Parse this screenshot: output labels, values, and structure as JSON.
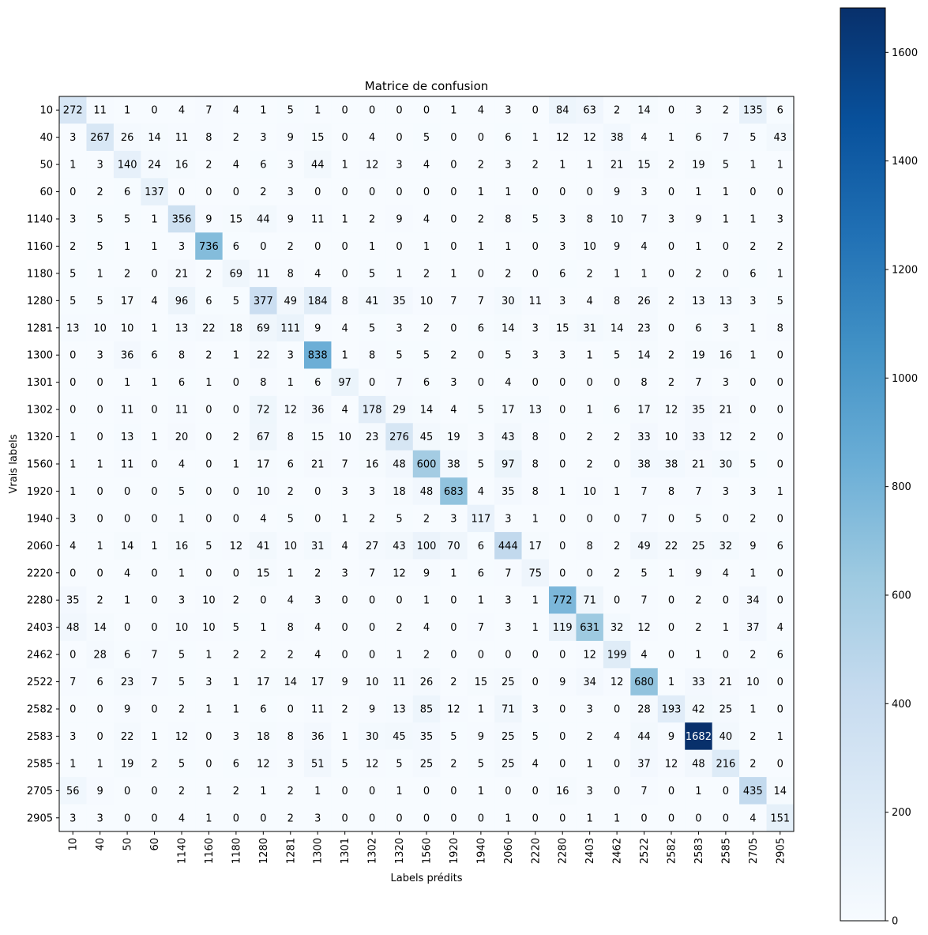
{
  "chart_data": {
    "type": "heatmap",
    "title": "Matrice de confusion",
    "xlabel": "Labels prédits",
    "ylabel": "Vrais labels",
    "row_labels": [
      "10",
      "40",
      "50",
      "60",
      "1140",
      "1160",
      "1180",
      "1280",
      "1281",
      "1300",
      "1301",
      "1302",
      "1320",
      "1560",
      "1920",
      "1940",
      "2060",
      "2220",
      "2280",
      "2403",
      "2462",
      "2522",
      "2582",
      "2583",
      "2585",
      "2705",
      "2905"
    ],
    "col_labels": [
      "10",
      "40",
      "50",
      "60",
      "1140",
      "1160",
      "1180",
      "1280",
      "1281",
      "1300",
      "1301",
      "1302",
      "1320",
      "1560",
      "1920",
      "1940",
      "2060",
      "2220",
      "2280",
      "2403",
      "2462",
      "2522",
      "2582",
      "2583",
      "2585",
      "2705",
      "2905"
    ],
    "matrix": [
      [
        272,
        11,
        1,
        0,
        4,
        7,
        4,
        1,
        5,
        1,
        0,
        0,
        0,
        0,
        1,
        4,
        3,
        0,
        84,
        63,
        2,
        14,
        0,
        3,
        2,
        135,
        6
      ],
      [
        3,
        267,
        26,
        14,
        11,
        8,
        2,
        3,
        9,
        15,
        0,
        4,
        0,
        5,
        0,
        0,
        6,
        1,
        12,
        12,
        38,
        4,
        1,
        6,
        7,
        5,
        43
      ],
      [
        1,
        3,
        140,
        24,
        16,
        2,
        4,
        6,
        3,
        44,
        1,
        12,
        3,
        4,
        0,
        2,
        3,
        2,
        1,
        1,
        21,
        15,
        2,
        19,
        5,
        1,
        1
      ],
      [
        0,
        2,
        6,
        137,
        0,
        0,
        0,
        2,
        3,
        0,
        0,
        0,
        0,
        0,
        0,
        1,
        1,
        0,
        0,
        0,
        9,
        3,
        0,
        1,
        1,
        0,
        0
      ],
      [
        3,
        5,
        5,
        1,
        356,
        9,
        15,
        44,
        9,
        11,
        1,
        2,
        9,
        4,
        0,
        2,
        8,
        5,
        3,
        8,
        10,
        7,
        3,
        9,
        1,
        1,
        3
      ],
      [
        2,
        5,
        1,
        1,
        3,
        736,
        6,
        0,
        2,
        0,
        0,
        1,
        0,
        1,
        0,
        1,
        1,
        0,
        3,
        10,
        9,
        4,
        0,
        1,
        0,
        2,
        2
      ],
      [
        5,
        1,
        2,
        0,
        21,
        2,
        69,
        11,
        8,
        4,
        0,
        5,
        1,
        2,
        1,
        0,
        2,
        0,
        6,
        2,
        1,
        1,
        0,
        2,
        0,
        6,
        1
      ],
      [
        5,
        5,
        17,
        4,
        96,
        6,
        5,
        377,
        49,
        184,
        8,
        41,
        35,
        10,
        7,
        7,
        30,
        11,
        3,
        4,
        8,
        26,
        2,
        13,
        13,
        3,
        5
      ],
      [
        13,
        10,
        10,
        1,
        13,
        22,
        18,
        69,
        111,
        9,
        4,
        5,
        3,
        2,
        0,
        6,
        14,
        3,
        15,
        31,
        14,
        23,
        0,
        6,
        3,
        1,
        8
      ],
      [
        0,
        3,
        36,
        6,
        8,
        2,
        1,
        22,
        3,
        838,
        1,
        8,
        5,
        5,
        2,
        0,
        5,
        3,
        3,
        1,
        5,
        14,
        2,
        19,
        16,
        1,
        0
      ],
      [
        0,
        0,
        1,
        1,
        6,
        1,
        0,
        8,
        1,
        6,
        97,
        0,
        7,
        6,
        3,
        0,
        4,
        0,
        0,
        0,
        0,
        8,
        2,
        7,
        3,
        0,
        0
      ],
      [
        0,
        0,
        11,
        0,
        11,
        0,
        0,
        72,
        12,
        36,
        4,
        178,
        29,
        14,
        4,
        5,
        17,
        13,
        0,
        1,
        6,
        17,
        12,
        35,
        21,
        0,
        0
      ],
      [
        1,
        0,
        13,
        1,
        20,
        0,
        2,
        67,
        8,
        15,
        10,
        23,
        276,
        45,
        19,
        3,
        43,
        8,
        0,
        2,
        2,
        33,
        10,
        33,
        12,
        2,
        0
      ],
      [
        1,
        1,
        11,
        0,
        4,
        0,
        1,
        17,
        6,
        21,
        7,
        16,
        48,
        600,
        38,
        5,
        97,
        8,
        0,
        2,
        0,
        38,
        38,
        21,
        30,
        5,
        0
      ],
      [
        1,
        0,
        0,
        0,
        5,
        0,
        0,
        10,
        2,
        0,
        3,
        3,
        18,
        48,
        683,
        4,
        35,
        8,
        1,
        10,
        1,
        7,
        8,
        7,
        3,
        3,
        1
      ],
      [
        3,
        0,
        0,
        0,
        1,
        0,
        0,
        4,
        5,
        0,
        1,
        2,
        5,
        2,
        3,
        117,
        3,
        1,
        0,
        0,
        0,
        7,
        0,
        5,
        0,
        2,
        0
      ],
      [
        4,
        1,
        14,
        1,
        16,
        5,
        12,
        41,
        10,
        31,
        4,
        27,
        43,
        100,
        70,
        6,
        444,
        17,
        0,
        8,
        2,
        49,
        22,
        25,
        32,
        9,
        6
      ],
      [
        0,
        0,
        4,
        0,
        1,
        0,
        0,
        15,
        1,
        2,
        3,
        7,
        12,
        9,
        1,
        6,
        7,
        75,
        0,
        0,
        2,
        5,
        1,
        9,
        4,
        1,
        0
      ],
      [
        35,
        2,
        1,
        0,
        3,
        10,
        2,
        0,
        4,
        3,
        0,
        0,
        0,
        1,
        0,
        1,
        3,
        1,
        772,
        71,
        0,
        7,
        0,
        2,
        0,
        34,
        0
      ],
      [
        48,
        14,
        0,
        0,
        10,
        10,
        5,
        1,
        8,
        4,
        0,
        0,
        2,
        4,
        0,
        7,
        3,
        1,
        119,
        631,
        32,
        12,
        0,
        2,
        1,
        37,
        4
      ],
      [
        0,
        28,
        6,
        7,
        5,
        1,
        2,
        2,
        2,
        4,
        0,
        0,
        1,
        2,
        0,
        0,
        0,
        0,
        0,
        12,
        199,
        4,
        0,
        1,
        0,
        2,
        6
      ],
      [
        7,
        6,
        23,
        7,
        5,
        3,
        1,
        17,
        14,
        17,
        9,
        10,
        11,
        26,
        2,
        15,
        25,
        0,
        9,
        34,
        12,
        680,
        1,
        33,
        21,
        10,
        0
      ],
      [
        0,
        0,
        9,
        0,
        2,
        1,
        1,
        6,
        0,
        11,
        2,
        9,
        13,
        85,
        12,
        1,
        71,
        3,
        0,
        3,
        0,
        28,
        193,
        42,
        25,
        1,
        0
      ],
      [
        3,
        0,
        22,
        1,
        12,
        0,
        3,
        18,
        8,
        36,
        1,
        30,
        45,
        35,
        5,
        9,
        25,
        5,
        0,
        2,
        4,
        44,
        9,
        1682,
        40,
        2,
        1
      ],
      [
        1,
        1,
        19,
        2,
        5,
        0,
        6,
        12,
        3,
        51,
        5,
        12,
        5,
        25,
        2,
        5,
        25,
        4,
        0,
        1,
        0,
        37,
        12,
        48,
        216,
        2,
        0
      ],
      [
        56,
        9,
        0,
        0,
        2,
        1,
        2,
        1,
        2,
        1,
        0,
        0,
        1,
        0,
        0,
        1,
        0,
        0,
        16,
        3,
        0,
        7,
        0,
        1,
        0,
        435,
        14
      ],
      [
        3,
        3,
        0,
        0,
        4,
        1,
        0,
        0,
        2,
        3,
        0,
        0,
        0,
        0,
        0,
        0,
        1,
        0,
        0,
        1,
        1,
        0,
        0,
        0,
        0,
        4,
        151
      ]
    ],
    "colormap": "Blues",
    "vmin": 0,
    "vmax": 1682,
    "colorbar_ticks": [
      0,
      200,
      400,
      600,
      800,
      1000,
      1200,
      1400,
      1600
    ],
    "grid": false
  }
}
